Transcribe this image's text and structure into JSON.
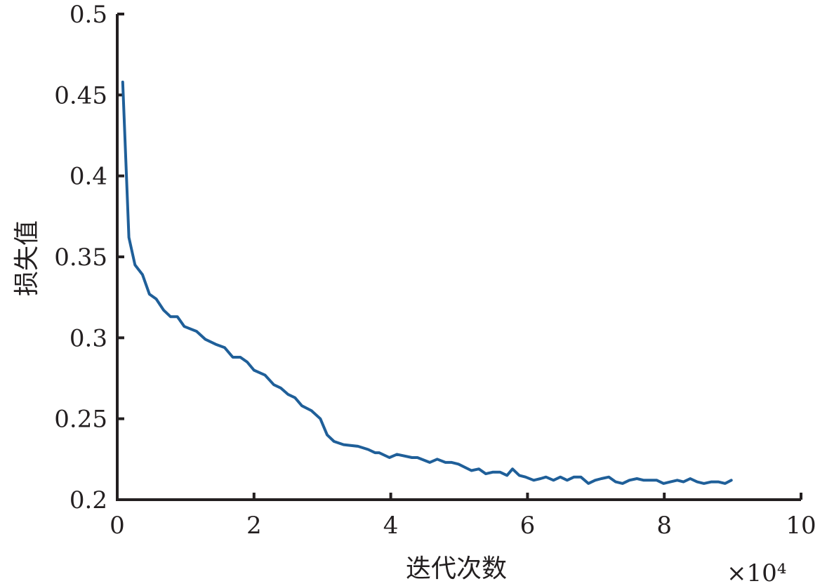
{
  "chart_data": {
    "type": "line",
    "title": "",
    "xlabel": "迭代次数",
    "ylabel": "损失值",
    "x_multiplier_label": "×10⁴",
    "xlim": [
      0,
      10
    ],
    "ylim": [
      0.2,
      0.5
    ],
    "xticks": [
      "0",
      "2",
      "4",
      "6",
      "8",
      "10"
    ],
    "yticks": [
      "0.2",
      "0.25",
      "0.3",
      "0.35",
      "0.4",
      "0.45",
      "0.5"
    ],
    "grid": false,
    "line_color": "#1f5f99",
    "series": [
      {
        "x": [
          0.08,
          0.17,
          0.26,
          0.37,
          0.47,
          0.57,
          0.68,
          0.78,
          0.88,
          0.98,
          1.16,
          1.29,
          1.44,
          1.57,
          1.69,
          1.8,
          1.9,
          2.0,
          2.16,
          2.29,
          2.39,
          2.5,
          2.6,
          2.7,
          2.84,
          2.97,
          3.07,
          3.17,
          3.31,
          3.52,
          3.67,
          3.77,
          3.83,
          3.98,
          4.09,
          4.31,
          4.39,
          4.57,
          4.68,
          4.8,
          4.89,
          4.99,
          5.18,
          5.29,
          5.39,
          5.49,
          5.6,
          5.7,
          5.78,
          5.88,
          5.97,
          6.09,
          6.19,
          6.27,
          6.38,
          6.48,
          6.58,
          6.68,
          6.78,
          6.89,
          6.99,
          7.08,
          7.19,
          7.29,
          7.39,
          7.49,
          7.6,
          7.7,
          7.89,
          7.99,
          8.09,
          8.19,
          8.28,
          8.38,
          8.48,
          8.58,
          8.69,
          8.79,
          8.89,
          8.98
        ],
        "y": [
          0.458,
          0.362,
          0.345,
          0.339,
          0.327,
          0.324,
          0.317,
          0.313,
          0.313,
          0.307,
          0.304,
          0.299,
          0.296,
          0.294,
          0.288,
          0.288,
          0.285,
          0.28,
          0.277,
          0.271,
          0.269,
          0.265,
          0.263,
          0.258,
          0.255,
          0.25,
          0.24,
          0.236,
          0.234,
          0.233,
          0.231,
          0.229,
          0.229,
          0.226,
          0.228,
          0.226,
          0.226,
          0.223,
          0.225,
          0.223,
          0.223,
          0.222,
          0.218,
          0.219,
          0.216,
          0.217,
          0.217,
          0.215,
          0.219,
          0.215,
          0.214,
          0.212,
          0.213,
          0.214,
          0.212,
          0.214,
          0.212,
          0.214,
          0.214,
          0.21,
          0.212,
          0.213,
          0.214,
          0.211,
          0.21,
          0.212,
          0.213,
          0.212,
          0.212,
          0.21,
          0.211,
          0.212,
          0.211,
          0.213,
          0.211,
          0.21,
          0.211,
          0.211,
          0.21,
          0.212
        ]
      }
    ]
  }
}
